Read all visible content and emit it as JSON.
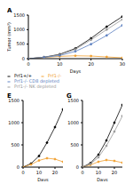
{
  "chart_data": [
    {
      "type": "line",
      "title": "A",
      "xlabel": "Days",
      "ylabel": "Tumor (mm³)",
      "x": [
        0,
        5,
        10,
        15,
        20,
        25,
        30
      ],
      "xlim": [
        0,
        30
      ],
      "xticks": [
        0,
        10,
        20,
        30
      ],
      "ylim": [
        0,
        1500
      ],
      "yticks": [
        0,
        500,
        1000,
        1500
      ],
      "marker": "circle",
      "legend": "bottom",
      "series": [
        {
          "name": "Prf1+/+",
          "color": "#000000",
          "values": [
            0,
            50,
            150,
            350,
            700,
            1100,
            1450
          ]
        },
        {
          "name": "Prf1-/-",
          "color": "#f0a030",
          "values": [
            0,
            40,
            80,
            100,
            90,
            60,
            30
          ]
        },
        {
          "name": "Prf1-/- NK depleted",
          "color": "#999999",
          "values": [
            0,
            50,
            140,
            320,
            650,
            1000,
            1350
          ]
        },
        {
          "name": "Prf1-/- CD8 depleted",
          "color": "#5b7fc0",
          "values": [
            0,
            45,
            110,
            250,
            500,
            800,
            1150
          ]
        }
      ]
    },
    {
      "type": "line",
      "title": "E",
      "xlabel": "Days",
      "x": [
        0,
        5,
        10,
        15,
        20,
        25
      ],
      "xlim": [
        0,
        25
      ],
      "xticks": [
        0,
        10,
        20
      ],
      "ylim": [
        0,
        1500
      ],
      "yticks": [
        0,
        500,
        1000,
        1500
      ],
      "marker": "circle",
      "series": [
        {
          "color": "#000000",
          "values": [
            0,
            80,
            250,
            550,
            900,
            1300
          ]
        },
        {
          "color": "#f0a030",
          "values": [
            0,
            60,
            150,
            200,
            180,
            120
          ]
        }
      ]
    },
    {
      "type": "line",
      "title": "G",
      "xlabel": "Days",
      "x": [
        0,
        5,
        10,
        15,
        20,
        25
      ],
      "xlim": [
        0,
        25
      ],
      "xticks": [
        0,
        10,
        20
      ],
      "ylim": [
        0,
        1500
      ],
      "yticks": [
        0,
        500,
        1000,
        1500
      ],
      "marker": "circle",
      "series": [
        {
          "color": "#000000",
          "values": [
            0,
            90,
            280,
            600,
            1000,
            1400
          ]
        },
        {
          "color": "#f0a030",
          "values": [
            0,
            50,
            120,
            160,
            140,
            100
          ]
        },
        {
          "color": "#999999",
          "values": [
            0,
            70,
            220,
            480,
            800,
            1150
          ]
        }
      ]
    }
  ]
}
